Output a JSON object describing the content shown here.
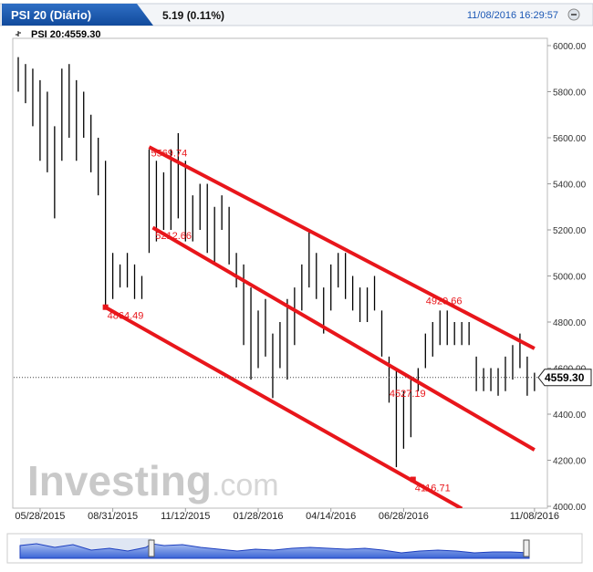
{
  "chart_data": {
    "type": "hlbar",
    "tab_title": "PSI 20 (Diário)",
    "change": "5.19 (0.11%)",
    "datetime": "11/08/2016 16:29:57",
    "legend_label": "PSI 20:4559.30",
    "watermark": {
      "brand": "Investing",
      "suffix": ".com"
    },
    "categories": [
      null,
      null,
      null,
      "05/28/2015",
      null,
      null,
      null,
      null,
      null,
      null,
      null,
      null,
      null,
      "08/31/2015",
      null,
      null,
      null,
      null,
      null,
      null,
      null,
      null,
      null,
      "11/12/2015",
      null,
      null,
      null,
      null,
      null,
      null,
      null,
      null,
      null,
      "01/28/2016",
      null,
      null,
      null,
      null,
      null,
      null,
      null,
      null,
      null,
      "04/14/2016",
      null,
      null,
      null,
      null,
      null,
      null,
      null,
      null,
      null,
      "06/28/2016",
      null,
      null,
      null,
      null,
      null,
      null,
      null,
      null,
      null,
      null,
      null,
      null,
      null,
      null,
      null,
      null,
      null,
      "11/08/2016"
    ],
    "series": [
      {
        "color": "#000000",
        "high": [
          5950,
          5920,
          5900,
          5850,
          5800,
          5650,
          5900,
          5920,
          5850,
          5800,
          5700,
          5600,
          5500,
          5100,
          5050,
          5100,
          5050,
          5000,
          5550,
          5500,
          5450,
          5550,
          5620,
          5500,
          5350,
          5400,
          5400,
          5300,
          5350,
          5300,
          5100,
          5050,
          4950,
          4850,
          4900,
          4750,
          4800,
          4900,
          4950,
          5050,
          5200,
          5100,
          4950,
          5050,
          5100,
          5100,
          5000,
          4950,
          4950,
          5000,
          4850,
          4650,
          4600,
          4500,
          4550,
          4600,
          4750,
          4800,
          4850,
          4850,
          4800,
          4800,
          4800,
          4650,
          4600,
          4600,
          4600,
          4650,
          4700,
          4750,
          4650,
          4580
        ],
        "low": [
          5800,
          5750,
          5650,
          5500,
          5450,
          5250,
          5500,
          5600,
          5500,
          5600,
          5450,
          5350,
          4864,
          4900,
          4950,
          4950,
          4900,
          4900,
          5100,
          5150,
          5200,
          5200,
          5250,
          5150,
          5150,
          5200,
          5100,
          5050,
          5200,
          5050,
          4950,
          4700,
          4550,
          4600,
          4650,
          4470,
          4600,
          4550,
          4700,
          4850,
          4950,
          4900,
          4750,
          4850,
          4950,
          4900,
          4850,
          4800,
          4800,
          4850,
          4650,
          4450,
          4170,
          4250,
          4300,
          4500,
          4600,
          4650,
          4700,
          4700,
          4700,
          4700,
          4700,
          4500,
          4500,
          4500,
          4480,
          4500,
          4550,
          4600,
          4480,
          4500
        ]
      }
    ],
    "trendlines": [
      {
        "color": "#e8161b",
        "start": [
          18,
          5560
        ],
        "end": [
          71,
          4685
        ]
      },
      {
        "color": "#e8161b",
        "start": [
          18.5,
          5210
        ],
        "end": [
          71,
          4245
        ]
      },
      {
        "color": "#e8161b",
        "start": [
          12,
          4864
        ],
        "end": [
          61,
          3990
        ]
      }
    ],
    "annotations": [
      {
        "label": "5569.74",
        "value": 5569.74,
        "x": 18
      },
      {
        "label": "5212.66",
        "value": 5212.66,
        "x": 18.6
      },
      {
        "label": "4864.49",
        "value": 4864.49,
        "x": 12,
        "marker": true
      },
      {
        "label": "4929.66",
        "value": 4929.66,
        "x": 55.8
      },
      {
        "label": "4527.19",
        "value": 4527.19,
        "x": 50.8
      },
      {
        "label": "4116.71",
        "value": 4116.71,
        "x": 54.3,
        "marker": true
      }
    ],
    "last_price": {
      "value": 4559.3,
      "label": "4559.30"
    },
    "ylim": [
      4000,
      6000
    ],
    "yticks": [
      {
        "value": 4000,
        "label": "4000.00"
      },
      {
        "value": 4200,
        "label": "4200.00"
      },
      {
        "value": 4400,
        "label": "4400.00"
      },
      {
        "value": 4600,
        "label": "4600.00"
      },
      {
        "value": 4800,
        "label": "4800.00"
      },
      {
        "value": 5000,
        "label": "5000.00"
      },
      {
        "value": 5200,
        "label": "5200.00"
      },
      {
        "value": 5400,
        "label": "5400.00"
      },
      {
        "value": 5600,
        "label": "5600.00"
      },
      {
        "value": 5800,
        "label": "5800.00"
      },
      {
        "value": 6000,
        "label": "6000.00"
      }
    ]
  }
}
